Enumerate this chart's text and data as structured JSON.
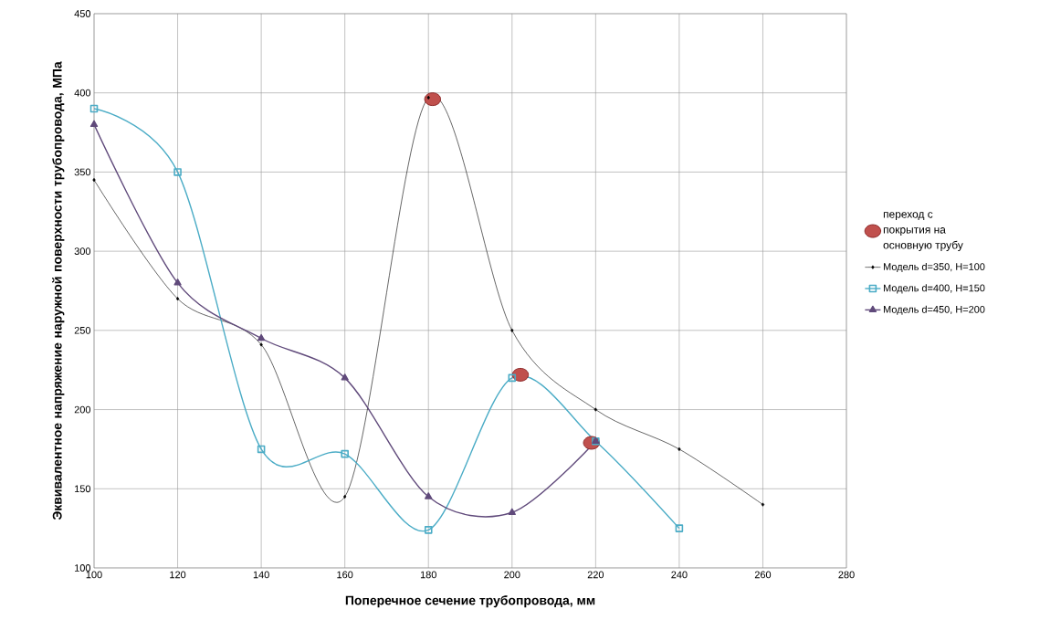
{
  "chart_data": {
    "type": "line",
    "xlabel": "Поперечное сечение трубопровода, мм",
    "ylabel": "Эквивалентное напряжение наружной поверхности трубопровода, МПа",
    "xlim": [
      100,
      280
    ],
    "xticks": [
      100,
      120,
      140,
      160,
      180,
      200,
      220,
      240,
      260,
      280
    ],
    "ylim": [
      100,
      450
    ],
    "yticks": [
      100,
      150,
      200,
      250,
      300,
      350,
      400,
      450
    ],
    "grid": true,
    "legend": "right",
    "series": [
      {
        "name": "переход с покрытия на основную трубу",
        "type": "scatter",
        "marker": "circle",
        "color": "#c0504d",
        "x": [
          181,
          202,
          219
        ],
        "values": [
          396,
          222,
          179
        ]
      },
      {
        "name": "Модель d=350, H=100",
        "marker": "diamond",
        "color": "#000000",
        "x": [
          100,
          120,
          140,
          160,
          180,
          200,
          220,
          240,
          260
        ],
        "values": [
          345,
          270,
          241,
          145,
          397,
          250,
          200,
          175,
          140
        ]
      },
      {
        "name": "Модель d=400, H=150",
        "marker": "square",
        "color": "#4bacc6",
        "x": [
          100,
          120,
          140,
          160,
          180,
          200,
          220,
          240
        ],
        "values": [
          390,
          350,
          175,
          172,
          124,
          220,
          180,
          125
        ]
      },
      {
        "name": "Модель d=450, H=200",
        "marker": "triangle",
        "color": "#604a7b",
        "x": [
          100,
          120,
          140,
          160,
          180,
          200,
          220
        ],
        "values": [
          380,
          280,
          245,
          220,
          145,
          135,
          180
        ]
      }
    ]
  }
}
